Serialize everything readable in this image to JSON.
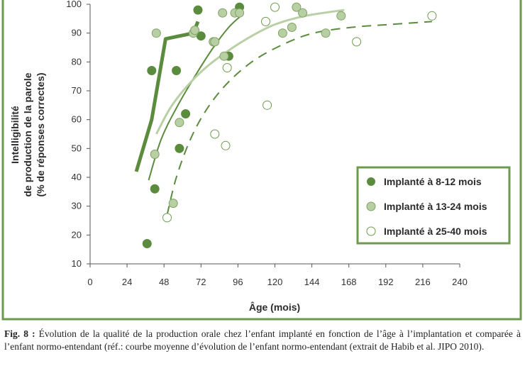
{
  "chart_data": {
    "type": "scatter",
    "xlabel": "Âge (mois)",
    "ylabel": [
      "Intelligibilité",
      "de production de la parole",
      "(% de réponses correctes)"
    ],
    "xlim": [
      0,
      240
    ],
    "ylim": [
      10,
      100
    ],
    "x_ticks": [
      "0",
      "24",
      "48",
      "72",
      "96",
      "120",
      "144",
      "168",
      "192",
      "216",
      "240"
    ],
    "y_ticks": [
      "10",
      "20",
      "30",
      "40",
      "50",
      "60",
      "70",
      "80",
      "90",
      "100"
    ],
    "grid": "none",
    "legend_position": "bottom-right",
    "colors": {
      "frame": "#6e9a4e",
      "dark_green": "#5b8c3e",
      "mid_green_fill": "#b7cfa2",
      "light_curve": "#b9d0a6",
      "open_stroke": "#6e9a4e"
    },
    "series": [
      {
        "name": "Implanté à 8-12 mois",
        "marker": "filled-dark",
        "points": [
          [
            37,
            17
          ],
          [
            40,
            77
          ],
          [
            42,
            36
          ],
          [
            56,
            77
          ],
          [
            58,
            50
          ],
          [
            62,
            62
          ],
          [
            70,
            98
          ],
          [
            72,
            89
          ],
          [
            90,
            82
          ],
          [
            97,
            99
          ]
        ]
      },
      {
        "name": "Implanté à 13-24 mois",
        "marker": "filled-light",
        "points": [
          [
            42,
            48
          ],
          [
            43,
            90
          ],
          [
            54,
            31
          ],
          [
            58,
            59
          ],
          [
            67,
            90
          ],
          [
            68,
            91
          ],
          [
            80,
            87
          ],
          [
            81,
            87
          ],
          [
            86,
            97
          ],
          [
            87,
            82
          ],
          [
            94,
            97
          ],
          [
            97,
            97
          ],
          [
            125,
            90
          ],
          [
            131,
            92
          ],
          [
            134,
            99
          ],
          [
            138,
            97
          ],
          [
            153,
            90
          ],
          [
            163,
            96
          ]
        ]
      },
      {
        "name": "Implanté à 25-40 mois",
        "marker": "open",
        "points": [
          [
            50,
            26
          ],
          [
            81,
            55
          ],
          [
            88,
            51
          ],
          [
            89,
            78
          ],
          [
            114,
            94
          ],
          [
            115,
            65
          ],
          [
            120,
            99
          ],
          [
            173,
            87
          ],
          [
            222,
            96
          ]
        ]
      }
    ],
    "curves": [
      {
        "style": "thick-solid",
        "points": [
          [
            30,
            42
          ],
          [
            40,
            60
          ],
          [
            49,
            88
          ],
          [
            67,
            90
          ],
          [
            70,
            94
          ]
        ]
      },
      {
        "style": "thin-solid-dark",
        "points": [
          [
            38,
            39
          ],
          [
            46,
            53
          ],
          [
            56,
            64
          ],
          [
            68,
            75
          ],
          [
            80,
            85
          ],
          [
            90,
            92
          ],
          [
            98,
            96
          ]
        ]
      },
      {
        "style": "light-solid",
        "points": [
          [
            43,
            55
          ],
          [
            52,
            64
          ],
          [
            62,
            71
          ],
          [
            75,
            78
          ],
          [
            90,
            84
          ],
          [
            105,
            89
          ],
          [
            120,
            93
          ],
          [
            140,
            96
          ],
          [
            165,
            98
          ]
        ]
      },
      {
        "style": "dashed-dark",
        "points": [
          [
            50,
            27
          ],
          [
            56,
            40
          ],
          [
            65,
            53
          ],
          [
            75,
            63
          ],
          [
            88,
            72
          ],
          [
            105,
            80
          ],
          [
            125,
            86
          ],
          [
            145,
            90
          ],
          [
            170,
            92
          ],
          [
            195,
            93
          ],
          [
            222,
            94
          ]
        ]
      }
    ]
  },
  "caption": {
    "fig_label": "Fig. 8 :",
    "text": " Évolution de la qualité de la production orale chez l’enfant implanté en fonction de l’âge à l’implantation et comparée à l’enfant normo-entendant (réf.: courbe moyenne d’évolution de l’enfant normo-entendant (extrait de Habib et al. JIPO 2010)."
  }
}
